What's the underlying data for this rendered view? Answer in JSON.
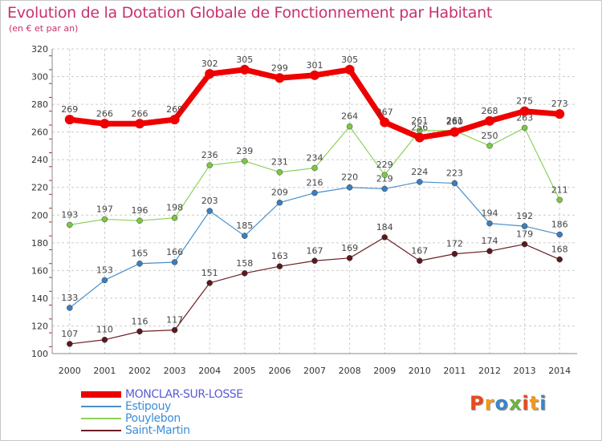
{
  "header": {
    "title": "Evolution de la Dotation Globale de Fonctionnement par Habitant",
    "subtitle": "(en € et par an)"
  },
  "logo": {
    "letters": [
      {
        "char": "P",
        "color": "#e8491e"
      },
      {
        "char": "r",
        "color": "#f09a1a"
      },
      {
        "char": "o",
        "color": "#3a86c8"
      },
      {
        "char": "x",
        "color": "#6cb33f"
      },
      {
        "char": "i",
        "color": "#e8491e"
      },
      {
        "char": "t",
        "color": "#f09a1a"
      },
      {
        "char": "i",
        "color": "#3a86c8"
      }
    ]
  },
  "chart_data": {
    "type": "line",
    "x": [
      2000,
      2001,
      2002,
      2003,
      2004,
      2005,
      2006,
      2007,
      2008,
      2009,
      2010,
      2011,
      2012,
      2013,
      2014
    ],
    "ylim": [
      100,
      320
    ],
    "yticks": [
      100,
      120,
      140,
      160,
      180,
      200,
      220,
      240,
      260,
      280,
      300,
      320
    ],
    "grid": true,
    "legend_position": "bottom-left",
    "series": [
      {
        "name": "Saint-Martin",
        "color": "#6b1f24",
        "marker": "#5a1a1e",
        "width": 1.2,
        "values": [
          107,
          110,
          116,
          117,
          151,
          158,
          163,
          167,
          169,
          184,
          167,
          172,
          174,
          179,
          168
        ]
      },
      {
        "name": "Estipouy",
        "color": "#4a8fc8",
        "marker": "#3a7fc0",
        "width": 1.2,
        "values": [
          133,
          153,
          165,
          166,
          203,
          185,
          209,
          216,
          220,
          219,
          224,
          223,
          194,
          192,
          186
        ]
      },
      {
        "name": "Pouylebon",
        "color": "#8ed15a",
        "marker": "#7cc844",
        "width": 1.2,
        "values": [
          193,
          197,
          196,
          198,
          236,
          239,
          231,
          234,
          264,
          229,
          261,
          261,
          250,
          263,
          211
        ]
      },
      {
        "name": "MONCLAR-SUR-LOSSE",
        "color": "#ee0000",
        "marker": "#ee0000",
        "width": 7,
        "values": [
          269,
          266,
          266,
          269,
          302,
          305,
          299,
          301,
          305,
          267,
          256,
          260,
          268,
          275,
          273
        ]
      }
    ],
    "legend_order": [
      "MONCLAR-SUR-LOSSE",
      "Estipouy",
      "Pouylebon",
      "Saint-Martin"
    ],
    "legend_colors": {
      "MONCLAR-SUR-LOSSE": "#5a5ad8",
      "Estipouy": "#3a8fd8",
      "Pouylebon": "#3a8fd8",
      "Saint-Martin": "#3a8fd8"
    }
  }
}
